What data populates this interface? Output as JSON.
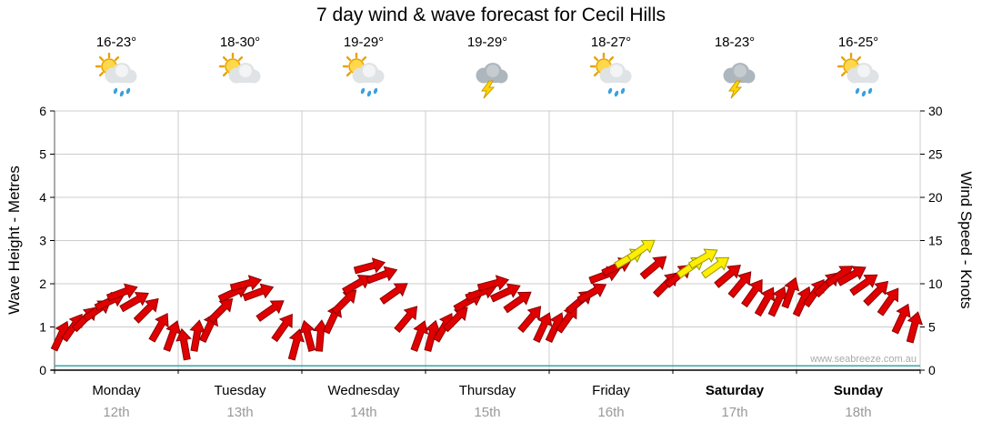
{
  "title": "7 day wind & wave forecast for Cecil Hills",
  "watermark": "www.seabreeze.com.au",
  "chart_data": {
    "type": "wind-arrow-timeseries",
    "title": "7 day wind & wave forecast for Cecil Hills",
    "left_axis": {
      "label": "Wave Height - Metres",
      "min": 0,
      "max": 6,
      "ticks": [
        0,
        1,
        2,
        3,
        4,
        5,
        6
      ]
    },
    "right_axis": {
      "label": "Wind Speed - Knots",
      "min": 0,
      "max": 30,
      "ticks": [
        0,
        5,
        10,
        15,
        20,
        25,
        30
      ]
    },
    "legend_position": "none",
    "grid": true,
    "colors": {
      "arrow_normal": "#e00000",
      "arrow_normal_outline": "#8b0000",
      "arrow_strong": "#ffee00",
      "arrow_strong_outline": "#999900",
      "grid": "#cccccc",
      "axis": "#000000",
      "date_text": "#999999",
      "wave_line": "#3aa6a6"
    },
    "wave_height_m": 0.1,
    "days": [
      {
        "name": "Monday",
        "date": "12th",
        "temp": "16-23°",
        "icon": "sun-cloud-rain",
        "weekend": false,
        "wind_kn": [
          4,
          5,
          6,
          7,
          8,
          9,
          8,
          7,
          5,
          4
        ],
        "wind_dir_deg": [
          25,
          35,
          45,
          55,
          65,
          70,
          60,
          45,
          30,
          20
        ],
        "strong": [
          0,
          0,
          0,
          0,
          0,
          0,
          0,
          0,
          0,
          0
        ]
      },
      {
        "name": "Tuesday",
        "date": "13th",
        "temp": "18-30°",
        "icon": "sun-cloud",
        "weekend": false,
        "wind_kn": [
          3,
          4,
          5,
          7,
          9,
          10,
          9,
          7,
          5,
          3
        ],
        "wind_dir_deg": [
          350,
          10,
          25,
          45,
          65,
          75,
          70,
          55,
          35,
          15
        ],
        "strong": [
          0,
          0,
          0,
          0,
          0,
          0,
          0,
          0,
          0,
          0
        ]
      },
      {
        "name": "Wednesday",
        "date": "14th",
        "temp": "19-29°",
        "icon": "sun-cloud-rain",
        "weekend": false,
        "wind_kn": [
          4,
          4,
          6,
          8,
          10,
          12,
          11,
          9,
          6,
          4
        ],
        "wind_dir_deg": [
          345,
          5,
          25,
          45,
          60,
          75,
          70,
          55,
          40,
          20
        ],
        "strong": [
          0,
          0,
          0,
          0,
          0,
          0,
          0,
          0,
          0,
          0
        ]
      },
      {
        "name": "Thursday",
        "date": "15th",
        "temp": "19-29°",
        "icon": "cloud-lightning",
        "weekend": false,
        "wind_kn": [
          4,
          5,
          6,
          8,
          9,
          10,
          9,
          8,
          6,
          5
        ],
        "wind_dir_deg": [
          15,
          30,
          45,
          60,
          70,
          75,
          65,
          55,
          40,
          25
        ],
        "strong": [
          0,
          0,
          0,
          0,
          0,
          0,
          0,
          0,
          0,
          0
        ]
      },
      {
        "name": "Friday",
        "date": "16th",
        "temp": "18-27°",
        "icon": "sun-cloud-rain",
        "weekend": false,
        "wind_kn": [
          5,
          6,
          8,
          9,
          11,
          12,
          13,
          14,
          12,
          10
        ],
        "wind_dir_deg": [
          25,
          35,
          50,
          60,
          70,
          65,
          60,
          55,
          50,
          45
        ],
        "strong": [
          0,
          0,
          0,
          0,
          0,
          0,
          1,
          1,
          0,
          0
        ]
      },
      {
        "name": "Saturday",
        "date": "17th",
        "temp": "18-23°",
        "icon": "cloud-lightning",
        "weekend": true,
        "wind_kn": [
          11,
          12,
          13,
          12,
          11,
          10,
          9,
          8,
          8,
          9
        ],
        "wind_dir_deg": [
          50,
          55,
          60,
          55,
          50,
          40,
          35,
          30,
          25,
          20
        ],
        "strong": [
          0,
          1,
          1,
          1,
          0,
          0,
          0,
          0,
          0,
          0
        ]
      },
      {
        "name": "Sunday",
        "date": "18th",
        "temp": "16-25°",
        "icon": "sun-cloud-rain",
        "weekend": true,
        "wind_kn": [
          8,
          9,
          10,
          11,
          11,
          10,
          9,
          8,
          6,
          5
        ],
        "wind_dir_deg": [
          25,
          35,
          45,
          55,
          60,
          55,
          45,
          35,
          25,
          15
        ],
        "strong": [
          0,
          0,
          0,
          0,
          0,
          0,
          0,
          0,
          0,
          0
        ]
      }
    ]
  }
}
